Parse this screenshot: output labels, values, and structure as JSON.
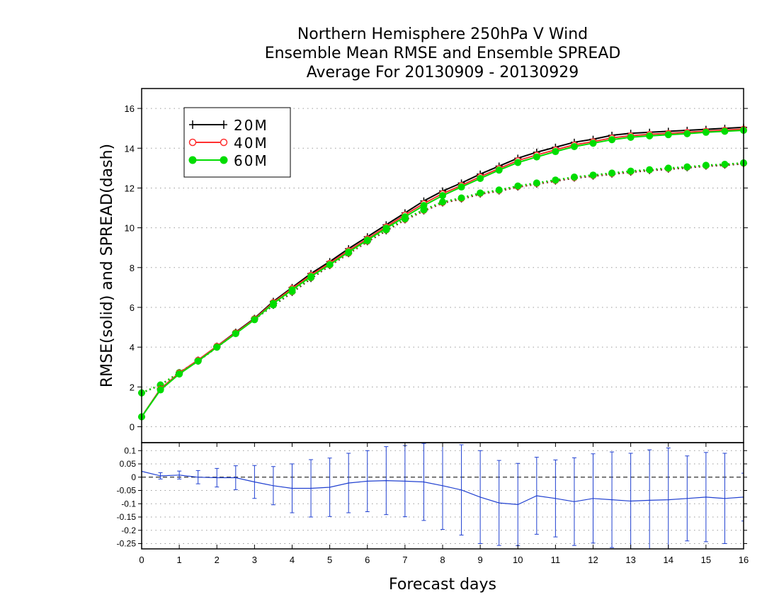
{
  "chart_data": [
    {
      "type": "line",
      "title": [
        "Northern Hemisphere 250hPa V Wind",
        "Ensemble Mean RMSE and Ensemble SPREAD",
        "Average For 20130909 - 20130929"
      ],
      "ylabel": "RMSE(solid) and SPREAD(dash)",
      "ylim": [
        -0.8,
        17
      ],
      "xlim": [
        0,
        16
      ],
      "yticks": [
        0,
        2,
        4,
        6,
        8,
        10,
        12,
        14,
        16
      ],
      "ytick_labels": [
        "0",
        "2",
        "4",
        "6",
        "8",
        "10",
        "12",
        "14",
        "16"
      ],
      "grid": true,
      "legend_position": "top-left",
      "legend": [
        "20M",
        "40M",
        "60M"
      ],
      "x": [
        0,
        0.5,
        1,
        1.5,
        2,
        2.5,
        3,
        3.5,
        4,
        4.5,
        5,
        5.5,
        6,
        6.5,
        7,
        7.5,
        8,
        8.5,
        9,
        9.5,
        10,
        10.5,
        11,
        11.5,
        12,
        12.5,
        13,
        13.5,
        14,
        14.5,
        15,
        15.5,
        16
      ],
      "series": [
        {
          "name": "20M",
          "style": "solid",
          "color": "#000000",
          "marker": "plus",
          "values": [
            0.5,
            1.9,
            2.7,
            3.35,
            4.05,
            4.75,
            5.45,
            6.3,
            7.0,
            7.7,
            8.3,
            8.95,
            9.55,
            10.15,
            10.75,
            11.35,
            11.85,
            12.25,
            12.7,
            13.1,
            13.5,
            13.8,
            14.05,
            14.3,
            14.45,
            14.65,
            14.75,
            14.8,
            14.85,
            14.9,
            14.95,
            15.0,
            15.05
          ]
        },
        {
          "name": "40M",
          "style": "solid",
          "color": "#ff3030",
          "marker": "open-circle",
          "values": [
            0.5,
            1.9,
            2.7,
            3.35,
            4.05,
            4.72,
            5.42,
            6.25,
            6.95,
            7.62,
            8.22,
            8.85,
            9.45,
            10.05,
            10.65,
            11.22,
            11.72,
            12.13,
            12.57,
            12.98,
            13.38,
            13.66,
            13.92,
            14.17,
            14.33,
            14.52,
            14.63,
            14.7,
            14.75,
            14.8,
            14.86,
            14.91,
            14.96
          ]
        },
        {
          "name": "60M",
          "style": "solid",
          "color": "#00dd00",
          "marker": "filled-circle",
          "values": [
            0.5,
            1.85,
            2.65,
            3.3,
            4.0,
            4.68,
            5.38,
            6.2,
            6.88,
            7.55,
            8.15,
            8.78,
            9.38,
            9.98,
            10.55,
            11.12,
            11.62,
            12.05,
            12.48,
            12.9,
            13.28,
            13.56,
            13.83,
            14.08,
            14.25,
            14.43,
            14.55,
            14.62,
            14.68,
            14.73,
            14.8,
            14.85,
            14.9
          ]
        },
        {
          "name": "20M",
          "style": "dash",
          "color": "#000000",
          "marker": "plus",
          "values": [
            1.7,
            2.1,
            2.7,
            3.3,
            4.0,
            4.7,
            5.4,
            6.1,
            6.75,
            7.45,
            8.1,
            8.7,
            9.3,
            9.85,
            10.4,
            10.85,
            11.25,
            11.45,
            11.7,
            11.85,
            12.05,
            12.2,
            12.35,
            12.5,
            12.6,
            12.7,
            12.8,
            12.88,
            12.95,
            13.02,
            13.1,
            13.15,
            13.22
          ]
        },
        {
          "name": "40M",
          "style": "dash",
          "color": "#ff3030",
          "marker": "open-circle",
          "values": [
            1.7,
            2.1,
            2.72,
            3.32,
            4.02,
            4.72,
            5.42,
            6.12,
            6.78,
            7.48,
            8.12,
            8.72,
            9.32,
            9.88,
            10.42,
            10.87,
            11.27,
            11.47,
            11.72,
            11.87,
            12.07,
            12.22,
            12.37,
            12.52,
            12.62,
            12.72,
            12.82,
            12.9,
            12.97,
            13.04,
            13.12,
            13.17,
            13.24
          ]
        },
        {
          "name": "60M",
          "style": "dash",
          "color": "#00dd00",
          "marker": "filled-circle",
          "values": [
            1.7,
            2.1,
            2.72,
            3.32,
            4.02,
            4.72,
            5.42,
            6.12,
            6.8,
            7.5,
            8.15,
            8.75,
            9.35,
            9.9,
            10.45,
            10.9,
            11.3,
            11.5,
            11.75,
            11.9,
            12.1,
            12.25,
            12.4,
            12.55,
            12.65,
            12.75,
            12.85,
            12.92,
            13.0,
            13.06,
            13.14,
            13.19,
            13.26
          ]
        }
      ]
    },
    {
      "type": "line",
      "xlabel": "Forecast days",
      "ylim": [
        -0.27,
        0.13
      ],
      "xlim": [
        0,
        16
      ],
      "yticks": [
        0.1,
        0.05,
        0,
        -0.05,
        -0.1,
        -0.15,
        -0.2,
        -0.25
      ],
      "ytick_labels": [
        "0.1",
        "0.05",
        "0",
        "-0.05",
        "-0.1",
        "-0.15",
        "-0.2",
        "-0.25"
      ],
      "xticks": [
        0,
        1,
        2,
        3,
        4,
        5,
        6,
        7,
        8,
        9,
        10,
        11,
        12,
        13,
        14,
        15,
        16
      ],
      "xtick_labels": [
        "0",
        "1",
        "2",
        "3",
        "4",
        "5",
        "6",
        "7",
        "8",
        "9",
        "10",
        "11",
        "12",
        "13",
        "14",
        "15",
        "16"
      ],
      "grid": true,
      "zero_line": true,
      "color": "#2040d0",
      "x": [
        0,
        0.5,
        1,
        1.5,
        2,
        2.5,
        3,
        3.5,
        4,
        4.5,
        5,
        5.5,
        6,
        6.5,
        7,
        7.5,
        8,
        8.5,
        9,
        9.5,
        10,
        10.5,
        11,
        11.5,
        12,
        12.5,
        13,
        13.5,
        14,
        14.5,
        15,
        15.5,
        16
      ],
      "values": [
        0.022,
        0.005,
        0.008,
        0.0,
        -0.002,
        -0.002,
        -0.018,
        -0.032,
        -0.042,
        -0.042,
        -0.038,
        -0.022,
        -0.015,
        -0.013,
        -0.015,
        -0.018,
        -0.032,
        -0.048,
        -0.075,
        -0.097,
        -0.103,
        -0.07,
        -0.08,
        -0.092,
        -0.08,
        -0.085,
        -0.09,
        -0.087,
        -0.085,
        -0.08,
        -0.075,
        -0.08,
        -0.075
      ],
      "error_half_width": [
        0,
        0.012,
        0.015,
        0.025,
        0.035,
        0.045,
        0.062,
        0.072,
        0.092,
        0.108,
        0.11,
        0.112,
        0.115,
        0.128,
        0.134,
        0.145,
        0.165,
        0.17,
        0.175,
        0.16,
        0.155,
        0.145,
        0.145,
        0.165,
        0.168,
        0.18,
        0.18,
        0.19,
        0.195,
        0.16,
        0.168,
        0.17,
        0.09
      ],
      "end_marker_half_width": [
        0.085,
        0.16
      ]
    }
  ]
}
